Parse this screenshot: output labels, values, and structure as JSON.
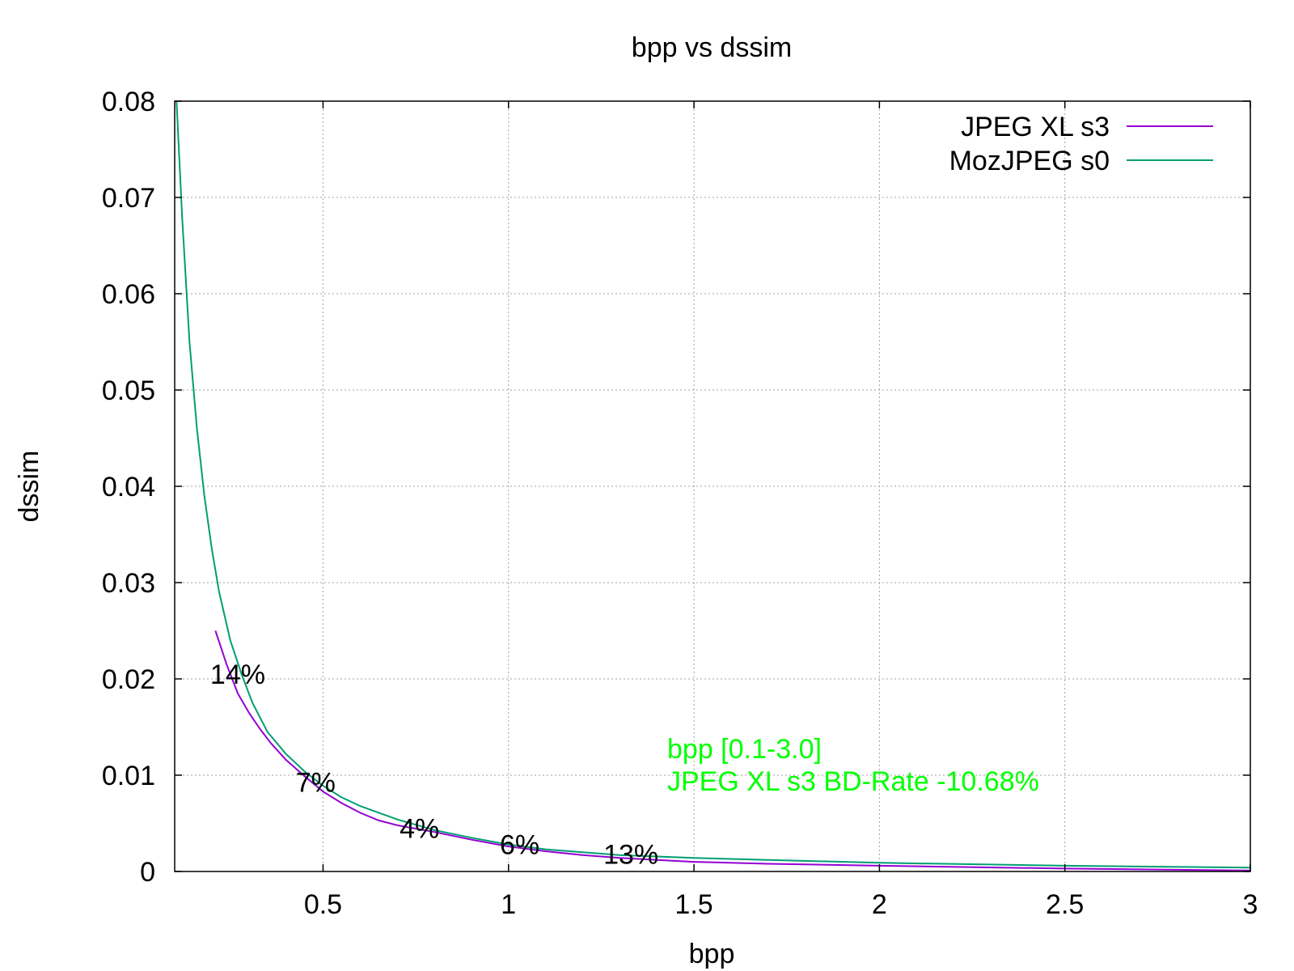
{
  "chart_data": {
    "type": "line",
    "title": "bpp vs dssim",
    "xlabel": "bpp",
    "ylabel": "dssim",
    "xlim": [
      0.1,
      3.0
    ],
    "ylim": [
      0,
      0.08
    ],
    "grid": true,
    "legend_position": "top-right",
    "x_ticks": [
      {
        "value": 0.5,
        "label": "0.5"
      },
      {
        "value": 1.0,
        "label": "1"
      },
      {
        "value": 1.5,
        "label": "1.5"
      },
      {
        "value": 2.0,
        "label": "2"
      },
      {
        "value": 2.5,
        "label": "2.5"
      },
      {
        "value": 3.0,
        "label": "3"
      }
    ],
    "y_ticks": [
      {
        "value": 0,
        "label": "0"
      },
      {
        "value": 0.01,
        "label": "0.01"
      },
      {
        "value": 0.02,
        "label": "0.02"
      },
      {
        "value": 0.03,
        "label": "0.03"
      },
      {
        "value": 0.04,
        "label": "0.04"
      },
      {
        "value": 0.05,
        "label": "0.05"
      },
      {
        "value": 0.06,
        "label": "0.06"
      },
      {
        "value": 0.07,
        "label": "0.07"
      },
      {
        "value": 0.08,
        "label": "0.08"
      }
    ],
    "series": [
      {
        "name": "JPEG XL s3",
        "color": "#9400d3",
        "points": [
          [
            0.21,
            0.025
          ],
          [
            0.24,
            0.0215
          ],
          [
            0.27,
            0.0185
          ],
          [
            0.3,
            0.0165
          ],
          [
            0.33,
            0.0148
          ],
          [
            0.36,
            0.0133
          ],
          [
            0.4,
            0.0116
          ],
          [
            0.45,
            0.0099
          ],
          [
            0.5,
            0.0083
          ],
          [
            0.55,
            0.0071
          ],
          [
            0.6,
            0.0061
          ],
          [
            0.65,
            0.0053
          ],
          [
            0.7,
            0.0048
          ],
          [
            0.8,
            0.0041
          ],
          [
            0.9,
            0.0033
          ],
          [
            1.0,
            0.0026
          ],
          [
            1.1,
            0.0021
          ],
          [
            1.2,
            0.0017
          ],
          [
            1.3,
            0.0014
          ],
          [
            1.4,
            0.0012
          ],
          [
            1.5,
            0.001
          ],
          [
            1.7,
            0.0008
          ],
          [
            2.0,
            0.0006
          ],
          [
            2.5,
            0.0003
          ],
          [
            3.0,
            0.0001
          ]
        ]
      },
      {
        "name": "MozJPEG s0",
        "color": "#009e73",
        "points": [
          [
            0.105,
            0.08
          ],
          [
            0.12,
            0.068
          ],
          [
            0.14,
            0.055
          ],
          [
            0.16,
            0.046
          ],
          [
            0.18,
            0.039
          ],
          [
            0.2,
            0.0335
          ],
          [
            0.22,
            0.029
          ],
          [
            0.25,
            0.024
          ],
          [
            0.28,
            0.0205
          ],
          [
            0.31,
            0.0175
          ],
          [
            0.35,
            0.0145
          ],
          [
            0.4,
            0.0122
          ],
          [
            0.45,
            0.0104
          ],
          [
            0.5,
            0.0089
          ],
          [
            0.55,
            0.0077
          ],
          [
            0.6,
            0.0068
          ],
          [
            0.7,
            0.0054
          ],
          [
            0.8,
            0.0043
          ],
          [
            0.9,
            0.0035
          ],
          [
            1.0,
            0.0028
          ],
          [
            1.1,
            0.0023
          ],
          [
            1.2,
            0.002
          ],
          [
            1.3,
            0.0017
          ],
          [
            1.5,
            0.0014
          ],
          [
            1.7,
            0.0012
          ],
          [
            2.0,
            0.0009
          ],
          [
            2.5,
            0.0006
          ],
          [
            3.0,
            0.0004
          ]
        ]
      }
    ],
    "annotations": [
      {
        "text": "14%",
        "x": 0.27,
        "y": 0.0205
      },
      {
        "text": "7%",
        "x": 0.48,
        "y": 0.0093
      },
      {
        "text": "4%",
        "x": 0.76,
        "y": 0.0045
      },
      {
        "text": "6%",
        "x": 1.03,
        "y": 0.0028
      },
      {
        "text": "13%",
        "x": 1.33,
        "y": 0.0018
      }
    ],
    "note": {
      "color": "#00ff00",
      "lines": [
        "bpp [0.1-3.0]",
        "JPEG XL s3 BD-Rate -10.68%"
      ]
    }
  }
}
